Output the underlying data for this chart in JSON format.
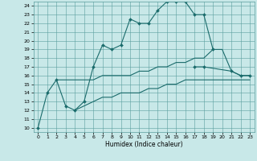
{
  "xlabel": "Humidex (Indice chaleur)",
  "background_color": "#c8e8e8",
  "grid_color": "#5a9e9e",
  "line_color": "#1a6b6b",
  "xlim": [
    -0.5,
    23.5
  ],
  "ylim": [
    9.5,
    24.5
  ],
  "xticks": [
    0,
    1,
    2,
    3,
    4,
    5,
    6,
    7,
    8,
    9,
    10,
    11,
    12,
    13,
    14,
    15,
    16,
    17,
    18,
    19,
    20,
    21,
    22,
    23
  ],
  "yticks": [
    10,
    11,
    12,
    13,
    14,
    15,
    16,
    17,
    18,
    19,
    20,
    21,
    22,
    23,
    24
  ],
  "line1_x": [
    0,
    1,
    2,
    3,
    4,
    5,
    6,
    7,
    8,
    9,
    10,
    11,
    12,
    13,
    14,
    15,
    16,
    17,
    18,
    19
  ],
  "line1_y": [
    10,
    14,
    15.5,
    12.5,
    12,
    13,
    17,
    19.5,
    19,
    19.5,
    22.5,
    22,
    22,
    23.5,
    24.5,
    24.5,
    24.5,
    23,
    23,
    19
  ],
  "line2_x": [
    17,
    18,
    21,
    22,
    23
  ],
  "line2_y": [
    17,
    17,
    16.5,
    16,
    16
  ],
  "line3_x": [
    2,
    3,
    4,
    5,
    6,
    7,
    8,
    9,
    10,
    11,
    12,
    13,
    14,
    15,
    16,
    17,
    18,
    19,
    20,
    21,
    22,
    23
  ],
  "line3_y": [
    15.5,
    15.5,
    15.5,
    15.5,
    15.5,
    16,
    16,
    16,
    16,
    16.5,
    16.5,
    17,
    17,
    17.5,
    17.5,
    18,
    18,
    19,
    19,
    16.5,
    16,
    16
  ],
  "line4_x": [
    4,
    5,
    6,
    7,
    8,
    9,
    10,
    11,
    12,
    13,
    14,
    15,
    16,
    17,
    18,
    19,
    20,
    21,
    22,
    23
  ],
  "line4_y": [
    12,
    12.5,
    13,
    13.5,
    13.5,
    14,
    14,
    14,
    14.5,
    14.5,
    15,
    15,
    15.5,
    15.5,
    15.5,
    15.5,
    15.5,
    15.5,
    15.5,
    15.5
  ]
}
